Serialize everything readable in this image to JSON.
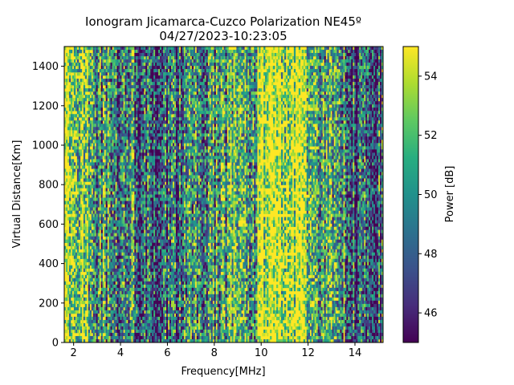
{
  "chart_data": {
    "type": "heatmap",
    "title": "Ionogram Jicamarca-Cuzco Polarization NE45º",
    "subtitle": "04/27/2023-10:23:05",
    "xlabel": "Frequency[MHz]",
    "ylabel": "Virtual Distance[Km]",
    "xlim": [
      1.6,
      15.2
    ],
    "ylim": [
      0,
      1500
    ],
    "x_ticks": [
      2,
      4,
      6,
      8,
      10,
      12,
      14
    ],
    "y_ticks": [
      0,
      200,
      400,
      600,
      800,
      1000,
      1200,
      1400
    ],
    "grid": false,
    "colormap": "viridis",
    "colorbar": {
      "label": "Power [dB]",
      "range": [
        45,
        55
      ],
      "ticks": [
        46,
        48,
        50,
        52,
        54
      ]
    },
    "band_profile": {
      "description_values_are_mean_power_dB_by_frequency_band": true,
      "bands": [
        {
          "from": 1.6,
          "to": 2.6,
          "mean_power": 54.0
        },
        {
          "from": 2.6,
          "to": 3.6,
          "mean_power": 50.5
        },
        {
          "from": 3.6,
          "to": 4.6,
          "mean_power": 49.5
        },
        {
          "from": 4.6,
          "to": 5.6,
          "mean_power": 48.5
        },
        {
          "from": 5.6,
          "to": 6.6,
          "mean_power": 48.0
        },
        {
          "from": 6.6,
          "to": 7.6,
          "mean_power": 49.5
        },
        {
          "from": 7.6,
          "to": 8.6,
          "mean_power": 50.5
        },
        {
          "from": 8.6,
          "to": 9.4,
          "mean_power": 52.5
        },
        {
          "from": 9.4,
          "to": 9.8,
          "mean_power": 51.0
        },
        {
          "from": 9.8,
          "to": 11.8,
          "mean_power": 55.0
        },
        {
          "from": 11.8,
          "to": 12.4,
          "mean_power": 53.5
        },
        {
          "from": 12.4,
          "to": 13.6,
          "mean_power": 51.0
        },
        {
          "from": 13.6,
          "to": 15.2,
          "mean_power": 48.0
        }
      ]
    }
  }
}
